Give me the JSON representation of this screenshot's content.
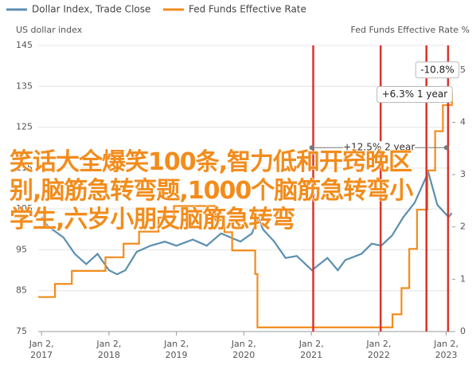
{
  "chart_data": {
    "type": "line",
    "legend": [
      "Dollar Index, Trade Close",
      "Fed Funds Effective Rate"
    ],
    "ylabel": "US dollar index",
    "y2label": "Fed Funds Effective Rate %",
    "xlim": [
      "2016-12-15",
      "2023-02-03"
    ],
    "xticks": [
      {
        "value": "2017-01-02",
        "label": "Jan 2, 2017"
      },
      {
        "value": "2018-01-02",
        "label": "Jan 2, 2018"
      },
      {
        "value": "2019-01-02",
        "label": "Jan 2, 2019"
      },
      {
        "value": "2020-01-02",
        "label": "Jan 2, 2020"
      },
      {
        "value": "2021-01-02",
        "label": "Jan 2, 2021"
      },
      {
        "value": "2022-01-02",
        "label": "Jan 2, 2022"
      },
      {
        "value": "2023-01-02",
        "label": "Jan 2, 2023"
      }
    ],
    "ylim": [
      75,
      145
    ],
    "yticks": [
      75,
      85,
      95,
      105,
      115,
      125,
      135,
      145
    ],
    "y2lim": [
      0,
      5.47
    ],
    "y2ticks": [
      0,
      1,
      2,
      3,
      4,
      5
    ],
    "grid": true,
    "series": [
      {
        "name": "Dollar Index, Trade Close",
        "color": "#5b8fb0",
        "x": [
          "2017-01-02",
          "2017-02-01",
          "2017-03-01",
          "2017-05-01",
          "2017-07-01",
          "2017-09-01",
          "2017-11-01",
          "2018-01-02",
          "2018-02-15",
          "2018-04-01",
          "2018-06-01",
          "2018-08-15",
          "2018-11-01",
          "2019-01-02",
          "2019-04-01",
          "2019-06-15",
          "2019-09-01",
          "2019-12-15",
          "2020-02-15",
          "2020-03-20",
          "2020-04-15",
          "2020-06-15",
          "2020-08-15",
          "2020-10-15",
          "2021-01-05",
          "2021-03-30",
          "2021-05-25",
          "2021-07-05",
          "2021-09-30",
          "2021-11-25",
          "2022-01-15",
          "2022-03-15",
          "2022-05-15",
          "2022-07-15",
          "2022-09-27",
          "2022-11-15",
          "2023-01-15",
          "2023-02-01"
        ],
        "values": [
          103,
          101,
          100,
          98,
          94,
          91.5,
          94,
          90,
          89,
          90,
          94.5,
          96,
          97,
          96,
          97.5,
          96,
          99,
          97,
          99,
          103,
          100,
          97,
          93,
          93.5,
          90,
          93,
          90,
          92.5,
          94,
          96.5,
          96,
          98.5,
          103,
          106.5,
          114,
          106,
          103,
          104
        ]
      },
      {
        "name": "Fed Funds Effective Rate",
        "color": "#f28c1c",
        "axis": "y2",
        "drawstyle": "steps-post",
        "x": [
          "2016-12-15",
          "2017-03-16",
          "2017-06-15",
          "2017-12-14",
          "2018-03-22",
          "2018-06-14",
          "2018-09-27",
          "2018-12-20",
          "2019-08-01",
          "2019-09-19",
          "2019-10-31",
          "2020-03-04",
          "2020-03-16",
          "2022-03-17",
          "2022-05-05",
          "2022-06-16",
          "2022-07-28",
          "2022-09-22",
          "2022-11-03",
          "2022-12-15",
          "2023-02-02"
        ],
        "values": [
          0.66,
          0.91,
          1.16,
          1.42,
          1.68,
          1.91,
          2.18,
          2.4,
          2.13,
          1.9,
          1.55,
          1.1,
          0.08,
          0.33,
          0.83,
          1.58,
          2.33,
          3.08,
          3.83,
          4.33,
          4.58
        ]
      }
    ],
    "vlines": {
      "color": "#d9342b",
      "x": [
        "2021-01-12",
        "2022-01-12",
        "2022-09-17",
        "2023-01-12"
      ]
    },
    "annotations": [
      {
        "label": "+12.5% 2 year",
        "x": [
          "2021-01-04",
          "2023-01-03"
        ],
        "y": 120
      },
      {
        "label": "+6.3% 1 year",
        "x": "2022-07-15",
        "y": 133
      },
      {
        "label": "-10.8%",
        "x": "2022-11-15",
        "y": 139
      }
    ]
  },
  "overlay_text": "笑话大全爆笑100条,智力低和开窍晚区别,脑筋急转弯题,1000个脑筋急转弯小学生,六岁小朋友脑筋急转弯"
}
